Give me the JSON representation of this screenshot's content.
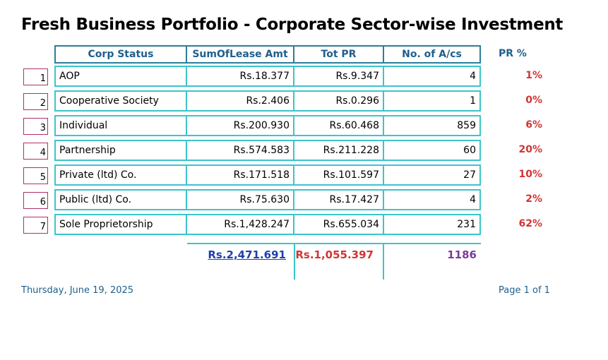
{
  "title": "Fresh Business Portfolio - Corporate Sector-wise Investment",
  "columns": {
    "corp_status": "Corp Status",
    "lease_amt": "SumOfLease Amt",
    "tot_pr": "Tot PR",
    "num_acs": "No. of A/cs",
    "pr_pct": "PR %"
  },
  "rows": [
    {
      "num": "1",
      "status": "AOP",
      "lease": "Rs.18.377",
      "pr": "Rs.9.347",
      "acs": "4",
      "pct": "1%"
    },
    {
      "num": "2",
      "status": "Cooperative Society",
      "lease": "Rs.2.406",
      "pr": "Rs.0.296",
      "acs": "1",
      "pct": "0%"
    },
    {
      "num": "3",
      "status": "Individual",
      "lease": "Rs.200.930",
      "pr": "Rs.60.468",
      "acs": "859",
      "pct": "6%"
    },
    {
      "num": "4",
      "status": "Partnership",
      "lease": "Rs.574.583",
      "pr": "Rs.211.228",
      "acs": "60",
      "pct": "20%"
    },
    {
      "num": "5",
      "status": "Private (ltd) Co.",
      "lease": "Rs.171.518",
      "pr": "Rs.101.597",
      "acs": "27",
      "pct": "10%"
    },
    {
      "num": "6",
      "status": "Public (ltd) Co.",
      "lease": "Rs.75.630",
      "pr": "Rs.17.427",
      "acs": "4",
      "pct": "2%"
    },
    {
      "num": "7",
      "status": "Sole Proprietorship",
      "lease": "Rs.1,428.247",
      "pr": "Rs.655.034",
      "acs": "231",
      "pct": "62%"
    }
  ],
  "totals": {
    "lease": "Rs.2,471.691",
    "pr": "Rs.1,055.397",
    "acs": "1186"
  },
  "footer": {
    "date": "Thursday, June 19, 2025",
    "page": "Page 1 of 1"
  }
}
